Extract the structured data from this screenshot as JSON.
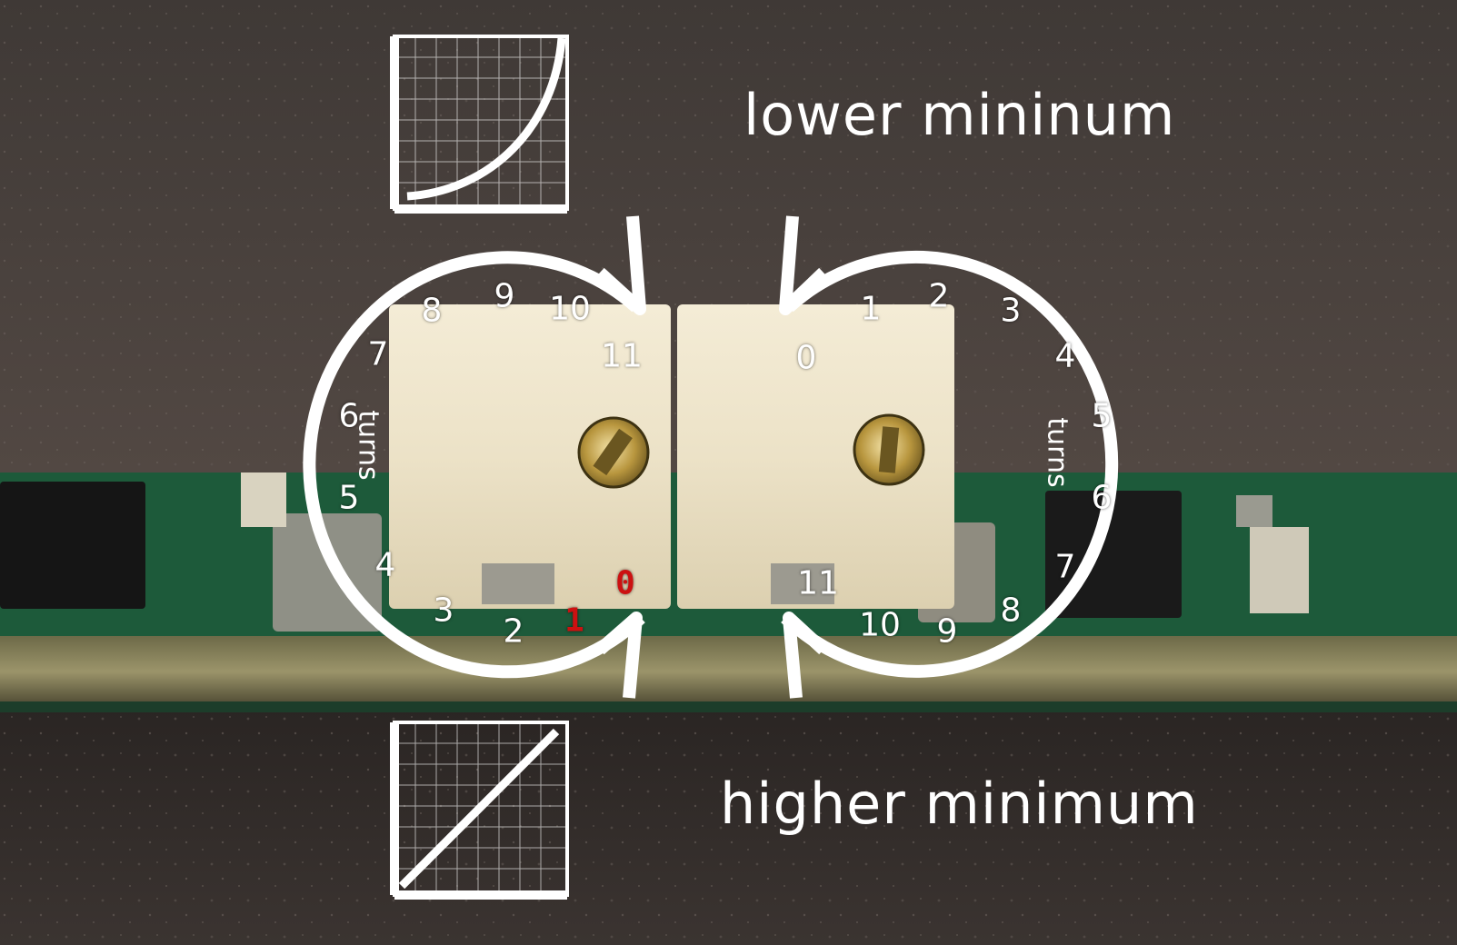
{
  "captions": {
    "top": "lower mininum",
    "bottom": "higher minimum"
  },
  "turns_label": "turns",
  "left_dial": [
    "11",
    "10",
    "9",
    "8",
    "7",
    "6",
    "5",
    "4",
    "3",
    "2",
    "1",
    "0"
  ],
  "right_dial": [
    "0",
    "1",
    "2",
    "3",
    "4",
    "5",
    "6",
    "7",
    "8",
    "9",
    "10",
    "11"
  ],
  "colors": {
    "overlay": "#ffffff",
    "highlight": "#cc1111",
    "pcb": "#1d5a3a",
    "trimmer_body": "#efe6cf"
  },
  "icons": {
    "top_graph": "exponential-curve-graph-icon",
    "bottom_graph": "linear-graph-icon"
  }
}
